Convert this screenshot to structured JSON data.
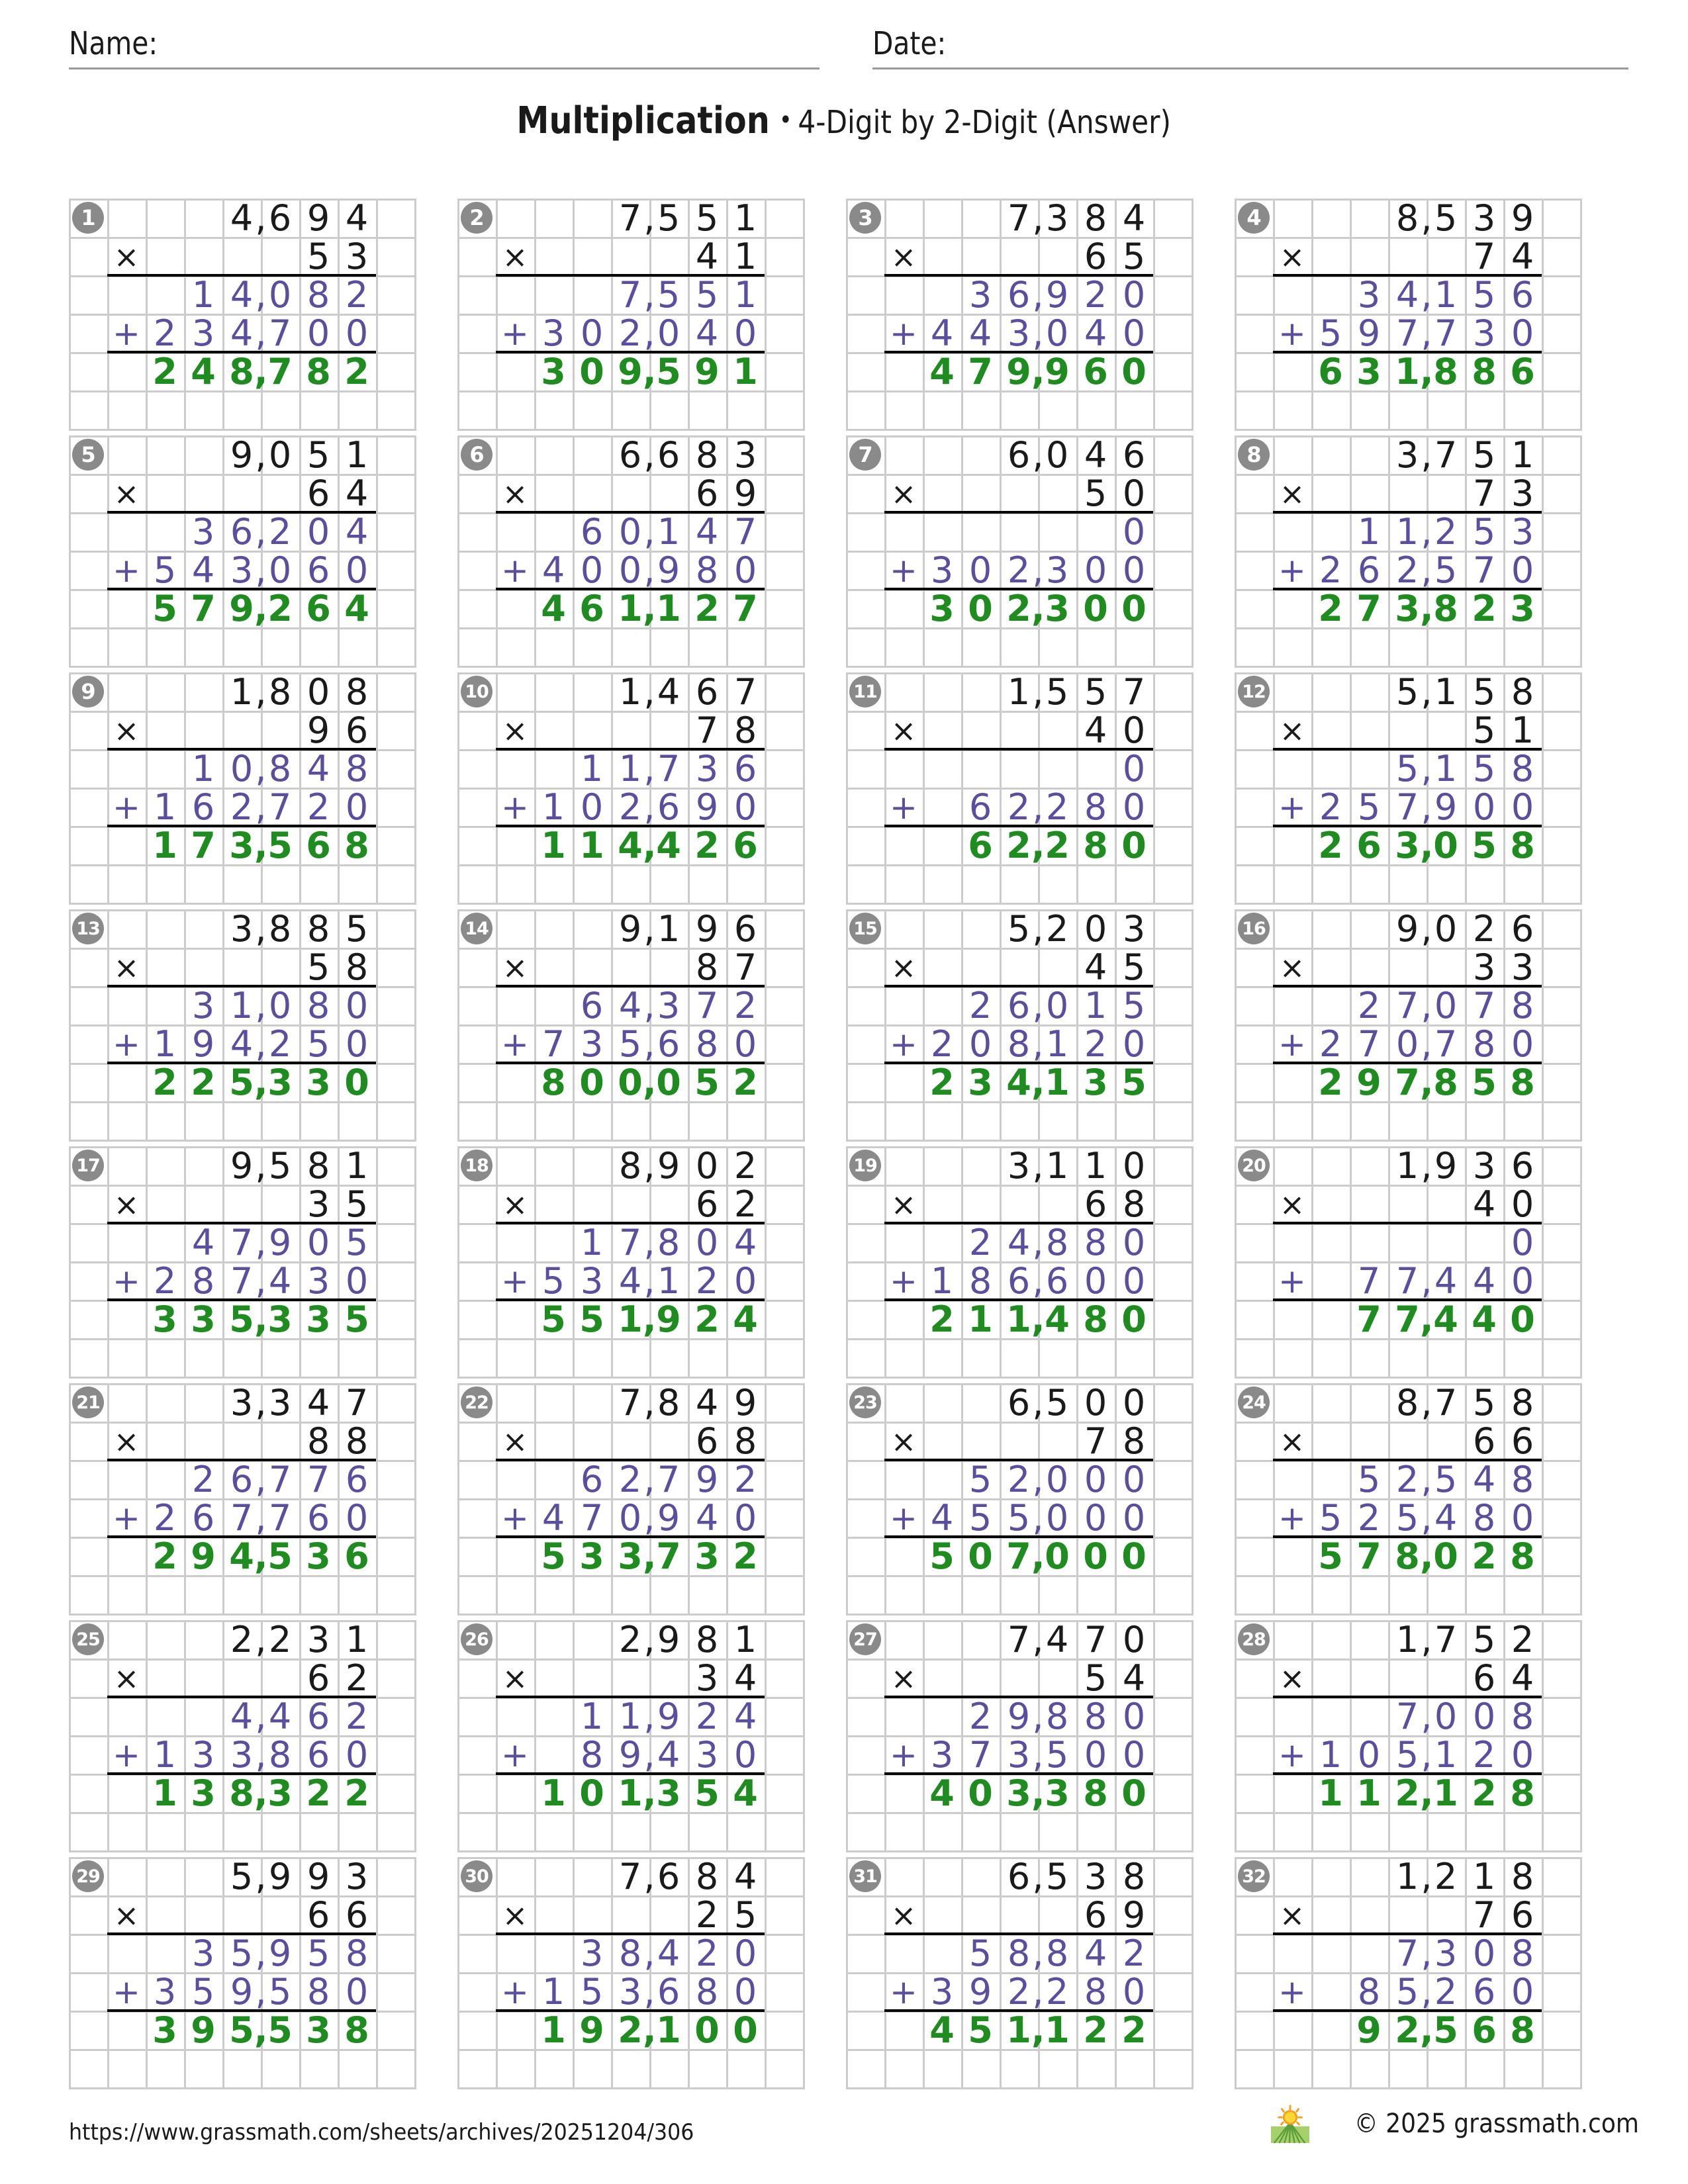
{
  "header": {
    "name_label": "Name:",
    "date_label": "Date:"
  },
  "title": {
    "main": "Multiplication",
    "separator": "•",
    "subtitle": "4-Digit by 2-Digit (Answer)"
  },
  "worksheet": {
    "times_sign": "×",
    "plus_sign": "+",
    "columns": 4,
    "rows": 8,
    "problems": [
      {
        "n": 1,
        "multiplicand": 4694,
        "multiplier": 53,
        "partial1": 14082,
        "partial2": 234700,
        "product": 248782
      },
      {
        "n": 2,
        "multiplicand": 7551,
        "multiplier": 41,
        "partial1": 7551,
        "partial2": 302040,
        "product": 309591
      },
      {
        "n": 3,
        "multiplicand": 7384,
        "multiplier": 65,
        "partial1": 36920,
        "partial2": 443040,
        "product": 479960
      },
      {
        "n": 4,
        "multiplicand": 8539,
        "multiplier": 74,
        "partial1": 34156,
        "partial2": 597730,
        "product": 631886
      },
      {
        "n": 5,
        "multiplicand": 9051,
        "multiplier": 64,
        "partial1": 36204,
        "partial2": 543060,
        "product": 579264
      },
      {
        "n": 6,
        "multiplicand": 6683,
        "multiplier": 69,
        "partial1": 60147,
        "partial2": 400980,
        "product": 461127
      },
      {
        "n": 7,
        "multiplicand": 6046,
        "multiplier": 50,
        "partial1": 0,
        "partial2": 302300,
        "product": 302300
      },
      {
        "n": 8,
        "multiplicand": 3751,
        "multiplier": 73,
        "partial1": 11253,
        "partial2": 262570,
        "product": 273823
      },
      {
        "n": 9,
        "multiplicand": 1808,
        "multiplier": 96,
        "partial1": 10848,
        "partial2": 162720,
        "product": 173568
      },
      {
        "n": 10,
        "multiplicand": 1467,
        "multiplier": 78,
        "partial1": 11736,
        "partial2": 102690,
        "product": 114426
      },
      {
        "n": 11,
        "multiplicand": 1557,
        "multiplier": 40,
        "partial1": 0,
        "partial2": 62280,
        "product": 62280
      },
      {
        "n": 12,
        "multiplicand": 5158,
        "multiplier": 51,
        "partial1": 5158,
        "partial2": 257900,
        "product": 263058
      },
      {
        "n": 13,
        "multiplicand": 3885,
        "multiplier": 58,
        "partial1": 31080,
        "partial2": 194250,
        "product": 225330
      },
      {
        "n": 14,
        "multiplicand": 9196,
        "multiplier": 87,
        "partial1": 64372,
        "partial2": 735680,
        "product": 800052
      },
      {
        "n": 15,
        "multiplicand": 5203,
        "multiplier": 45,
        "partial1": 26015,
        "partial2": 208120,
        "product": 234135
      },
      {
        "n": 16,
        "multiplicand": 9026,
        "multiplier": 33,
        "partial1": 27078,
        "partial2": 270780,
        "product": 297858
      },
      {
        "n": 17,
        "multiplicand": 9581,
        "multiplier": 35,
        "partial1": 47905,
        "partial2": 287430,
        "product": 335335
      },
      {
        "n": 18,
        "multiplicand": 8902,
        "multiplier": 62,
        "partial1": 17804,
        "partial2": 534120,
        "product": 551924
      },
      {
        "n": 19,
        "multiplicand": 3110,
        "multiplier": 68,
        "partial1": 24880,
        "partial2": 186600,
        "product": 211480
      },
      {
        "n": 20,
        "multiplicand": 1936,
        "multiplier": 40,
        "partial1": 0,
        "partial2": 77440,
        "product": 77440
      },
      {
        "n": 21,
        "multiplicand": 3347,
        "multiplier": 88,
        "partial1": 26776,
        "partial2": 267760,
        "product": 294536
      },
      {
        "n": 22,
        "multiplicand": 7849,
        "multiplier": 68,
        "partial1": 62792,
        "partial2": 470940,
        "product": 533732
      },
      {
        "n": 23,
        "multiplicand": 6500,
        "multiplier": 78,
        "partial1": 52000,
        "partial2": 455000,
        "product": 507000
      },
      {
        "n": 24,
        "multiplicand": 8758,
        "multiplier": 66,
        "partial1": 52548,
        "partial2": 525480,
        "product": 578028
      },
      {
        "n": 25,
        "multiplicand": 2231,
        "multiplier": 62,
        "partial1": 4462,
        "partial2": 133860,
        "product": 138322
      },
      {
        "n": 26,
        "multiplicand": 2981,
        "multiplier": 34,
        "partial1": 11924,
        "partial2": 89430,
        "product": 101354
      },
      {
        "n": 27,
        "multiplicand": 7470,
        "multiplier": 54,
        "partial1": 29880,
        "partial2": 373500,
        "product": 403380
      },
      {
        "n": 28,
        "multiplicand": 1752,
        "multiplier": 64,
        "partial1": 7008,
        "partial2": 105120,
        "product": 112128
      },
      {
        "n": 29,
        "multiplicand": 5993,
        "multiplier": 66,
        "partial1": 35958,
        "partial2": 359580,
        "product": 395538
      },
      {
        "n": 30,
        "multiplicand": 7684,
        "multiplier": 25,
        "partial1": 38420,
        "partial2": 153680,
        "product": 192100
      },
      {
        "n": 31,
        "multiplicand": 6538,
        "multiplier": 69,
        "partial1": 58842,
        "partial2": 392280,
        "product": 451122
      },
      {
        "n": 32,
        "multiplicand": 1218,
        "multiplier": 76,
        "partial1": 7308,
        "partial2": 85260,
        "product": 92568
      }
    ]
  },
  "footer": {
    "url": "https://www.grassmath.com/sheets/archives/20251204/306",
    "logo": "grassmath-sun-over-field-logo",
    "copyright": "© 2025 grassmath.com"
  },
  "colors": {
    "operand_text": "#1a1a1a",
    "partial_text": "#5a4f9e",
    "answer_text": "#1e8c1e",
    "grid_line": "#cccccc",
    "badge_background": "#8a8a8a",
    "badge_text": "#ffffff",
    "rule_line": "#000000",
    "header_underline": "#9a9a9a",
    "logo_sun": "#f5a11c",
    "logo_field": "#a5d06b"
  }
}
